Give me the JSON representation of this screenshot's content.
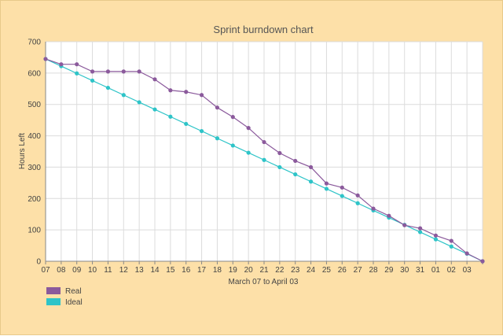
{
  "chart_data": {
    "type": "line",
    "title": "Sprint burndown chart",
    "xlabel": "March 07 to April 03",
    "ylabel": "Hours Left",
    "ylim": [
      0,
      700
    ],
    "yticks": [
      0,
      100,
      200,
      300,
      400,
      500,
      600,
      700
    ],
    "categories": [
      "07",
      "08",
      "09",
      "10",
      "11",
      "12",
      "13",
      "14",
      "15",
      "16",
      "17",
      "18",
      "19",
      "20",
      "21",
      "22",
      "23",
      "24",
      "25",
      "26",
      "27",
      "28",
      "29",
      "30",
      "31",
      "01",
      "02",
      "03",
      ""
    ],
    "grid": true,
    "legend_position": "bottom-left",
    "series": [
      {
        "name": "Real",
        "color": "#8b5a9c",
        "values": [
          645,
          628,
          628,
          605,
          605,
          605,
          605,
          580,
          545,
          540,
          530,
          490,
          460,
          425,
          380,
          345,
          320,
          300,
          248,
          235,
          210,
          168,
          145,
          115,
          105,
          82,
          65,
          25,
          0
        ]
      },
      {
        "name": "Ideal",
        "color": "#2ec4c8",
        "values": [
          645,
          622,
          599,
          576,
          553,
          530,
          507,
          484,
          461,
          438,
          415,
          392,
          369,
          346,
          323,
          300,
          277,
          254,
          231,
          208,
          185,
          162,
          139,
          116,
          93,
          70,
          47,
          24,
          0
        ]
      }
    ]
  }
}
